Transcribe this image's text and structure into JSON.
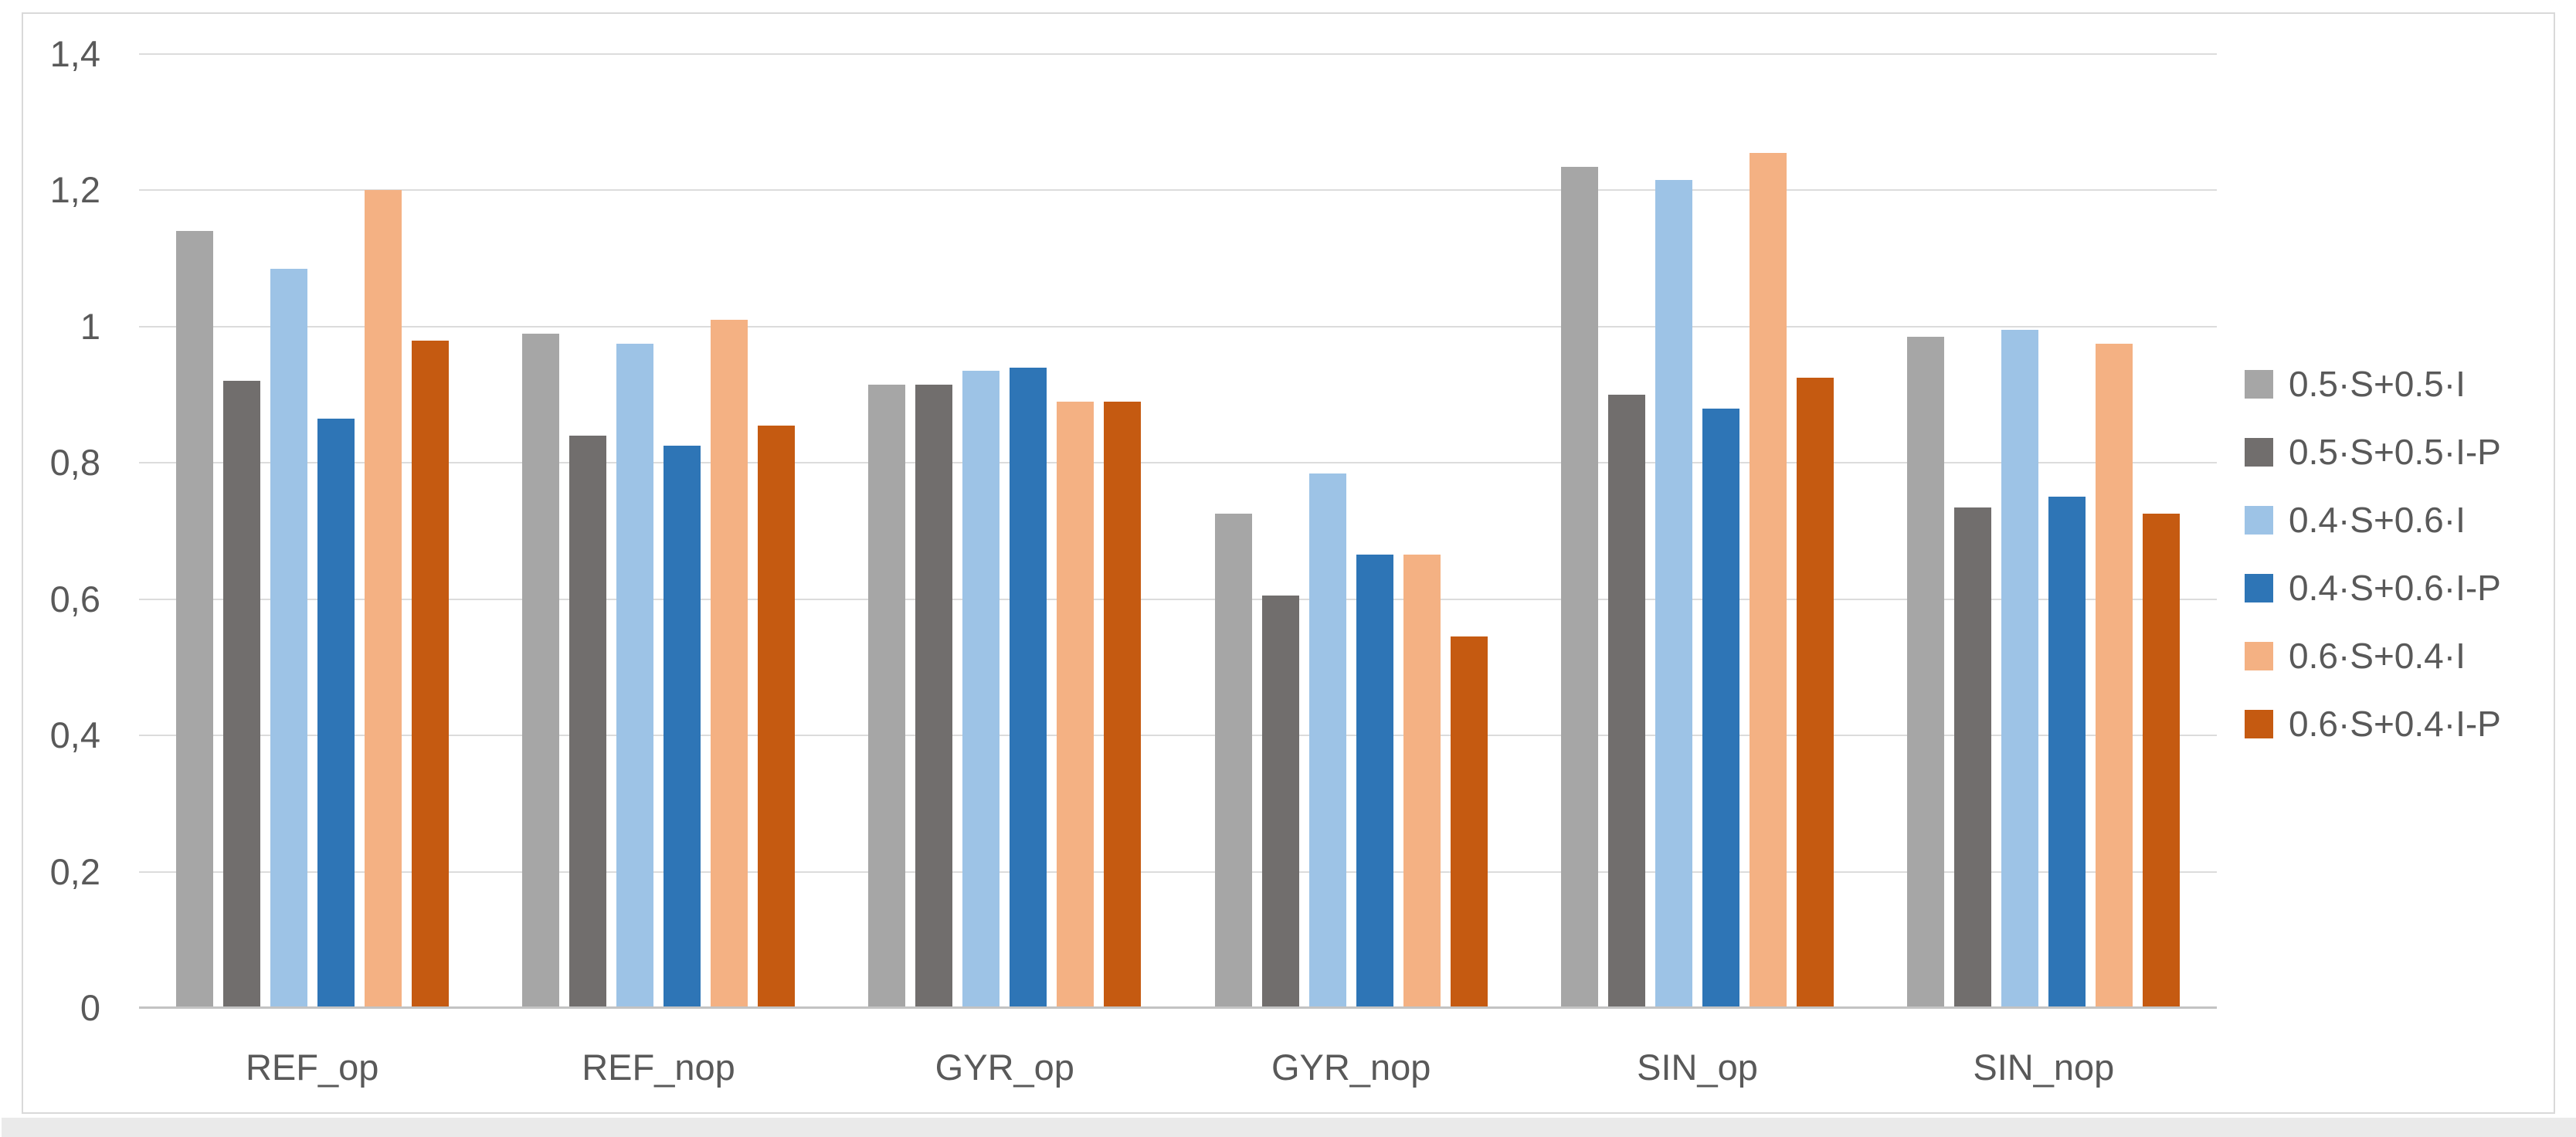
{
  "chart_data": {
    "type": "bar",
    "title": "",
    "xlabel": "",
    "ylabel": "",
    "categories": [
      "REF_op",
      "REF_nop",
      "GYR_op",
      "GYR_nop",
      "SIN_op",
      "SIN_nop"
    ],
    "series": [
      {
        "name": "0.5·S+0.5·I",
        "color": "#a6a6a6",
        "values": [
          1.14,
          0.99,
          0.915,
          0.725,
          1.235,
          0.985
        ]
      },
      {
        "name": "0.5·S+0.5·I-P",
        "color": "#716e6d",
        "values": [
          0.92,
          0.84,
          0.915,
          0.605,
          0.9,
          0.735
        ]
      },
      {
        "name": "0.4·S+0.6·I",
        "color": "#9dc3e6",
        "values": [
          1.085,
          0.975,
          0.935,
          0.785,
          1.215,
          0.995
        ]
      },
      {
        "name": "0.4·S+0.6·I-P",
        "color": "#2e75b6",
        "values": [
          0.865,
          0.825,
          0.94,
          0.665,
          0.88,
          0.75
        ]
      },
      {
        "name": "0.6·S+0.4·I",
        "color": "#f4b183",
        "values": [
          1.2,
          1.01,
          0.89,
          0.665,
          1.255,
          0.975
        ]
      },
      {
        "name": "0.6·S+0.4·I-P",
        "color": "#c55a11",
        "values": [
          0.98,
          0.855,
          0.89,
          0.545,
          0.925,
          0.725
        ]
      }
    ],
    "y_ticks": [
      "1,4",
      "1,2",
      "1",
      "0,8",
      "0,6",
      "0,4",
      "0,2",
      "0"
    ],
    "y_tick_values": [
      1.4,
      1.2,
      1.0,
      0.8,
      0.6,
      0.4,
      0.2,
      0
    ],
    "ylim": [
      0,
      1.4
    ],
    "grid": true,
    "legend_position": "right",
    "colors": {
      "gridline": "#dcdcdc",
      "axis_line": "#c3c3c3",
      "tick_text": "#595959",
      "frame_border": "#d9d9d9",
      "background": "#ffffff",
      "bottom_strip": "#eaeaea"
    }
  }
}
